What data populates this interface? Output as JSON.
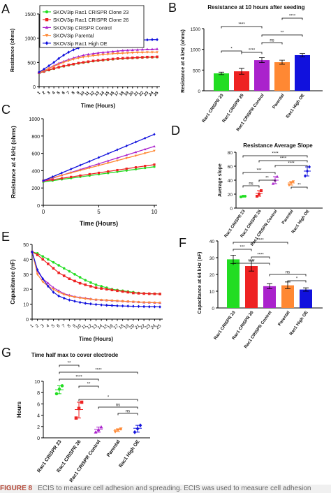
{
  "colors": {
    "g1": "#22dd22",
    "g2": "#ee2222",
    "g3": "#aa22cc",
    "g4": "#ff8833",
    "g5": "#1111dd",
    "line": "#000000"
  },
  "legend": [
    "SKOV3ip Rac1 CRISPR Clone 23",
    "SKOV3ip Rac1 CRISPR Clone 26",
    "SKOV3ip CRISPR Control",
    "SKOV3ip Parental",
    "SKOV3ip Rac1 High OE"
  ],
  "caption": {
    "label": "FIGURE 8",
    "text": "ECIS to measure cell adhesion and spreading. ECIS was used to measure cell adhesion"
  },
  "chart_data": [
    {
      "panel": "A",
      "type": "line",
      "title": "",
      "xlabel": "Time (Hours)",
      "ylabel": "Resistance (ohms)",
      "x": [
        1,
        2,
        3,
        4,
        5,
        6,
        7,
        8,
        9,
        10,
        11,
        12,
        13,
        14,
        15,
        16,
        17,
        18,
        19,
        20,
        21,
        22,
        23,
        24,
        25
      ],
      "xlim": [
        1,
        25
      ],
      "ylim": [
        0,
        1500
      ],
      "yticks": [
        0,
        500,
        1000,
        1500
      ],
      "series": [
        {
          "name": "SKOV3ip Rac1 CRISPR Clone 23",
          "values": [
            280,
            310,
            340,
            370,
            395,
            420,
            440,
            460,
            480,
            495,
            510,
            525,
            535,
            545,
            555,
            565,
            575,
            580,
            585,
            590,
            595,
            600,
            605,
            605,
            610
          ]
        },
        {
          "name": "SKOV3ip Rac1 CRISPR Clone 26",
          "values": [
            285,
            315,
            345,
            375,
            400,
            425,
            445,
            465,
            485,
            500,
            515,
            530,
            540,
            550,
            560,
            570,
            580,
            585,
            590,
            595,
            600,
            605,
            610,
            610,
            615
          ]
        },
        {
          "name": "SKOV3ip CRISPR Control",
          "values": [
            290,
            330,
            380,
            430,
            480,
            520,
            560,
            590,
            620,
            645,
            665,
            680,
            695,
            705,
            715,
            725,
            735,
            745,
            750,
            755,
            760,
            765,
            770,
            770,
            775
          ]
        },
        {
          "name": "SKOV3ip Parental",
          "values": [
            290,
            330,
            375,
            420,
            460,
            500,
            535,
            565,
            590,
            610,
            625,
            640,
            650,
            660,
            670,
            680,
            685,
            690,
            695,
            700,
            705,
            705,
            710,
            710,
            710
          ]
        },
        {
          "name": "SKOV3ip Rac1 High OE",
          "values": [
            300,
            360,
            430,
            500,
            580,
            650,
            710,
            760,
            800,
            830,
            860,
            880,
            895,
            910,
            920,
            930,
            940,
            945,
            950,
            955,
            960,
            965,
            965,
            970,
            970
          ]
        }
      ]
    },
    {
      "panel": "B",
      "type": "bar",
      "title": "Resistance at 10 hours after seeding",
      "ylabel": "Resistance at 4 kHz (ohms)",
      "categories": [
        "Rac1 CRISPR 23",
        "Rac1 CRISPR 26",
        "Rac1 CRISPR Control",
        "Parental",
        "Rac1 High OE"
      ],
      "values": [
        420,
        470,
        740,
        690,
        860
      ],
      "errors": [
        30,
        70,
        60,
        50,
        40
      ],
      "ylim": [
        0,
        1500
      ],
      "yticks": [
        0,
        500,
        1000,
        1500
      ],
      "significance": [
        {
          "from": 0,
          "to": 1,
          "label": "*"
        },
        {
          "from": 2,
          "to": 3,
          "label": "ns"
        },
        {
          "from": 2,
          "to": 4,
          "label": "**"
        },
        {
          "from": 1,
          "to": 2,
          "label": "****"
        },
        {
          "from": 0,
          "to": 2,
          "label": "****"
        },
        {
          "from": 3,
          "to": 4,
          "label": "****"
        }
      ]
    },
    {
      "panel": "C",
      "type": "line",
      "xlabel": "Time (Hours)",
      "ylabel": "Resistance at 4 kHz (ohms)",
      "xlim": [
        0,
        10
      ],
      "ylim": [
        0,
        1000
      ],
      "xticks": [
        0,
        5,
        10
      ],
      "yticks": [
        0,
        200,
        400,
        600,
        800,
        1000
      ],
      "series": [
        {
          "name": "SKOV3ip Rac1 CRISPR Clone 23",
          "points": [
            [
              0,
              270
            ],
            [
              10,
              445
            ]
          ]
        },
        {
          "name": "SKOV3ip Rac1 CRISPR Clone 26",
          "points": [
            [
              0,
              280
            ],
            [
              10,
              470
            ]
          ]
        },
        {
          "name": "SKOV3ip CRISPR Control",
          "points": [
            [
              0,
              280
            ],
            [
              10,
              680
            ]
          ]
        },
        {
          "name": "SKOV3ip Parental",
          "points": [
            [
              0,
              290
            ],
            [
              10,
              630
            ]
          ]
        },
        {
          "name": "SKOV3ip Rac1 High OE",
          "points": [
            [
              0,
              285
            ],
            [
              10,
              820
            ]
          ]
        }
      ]
    },
    {
      "panel": "D",
      "type": "scatter",
      "title": "Resistance Average Slope",
      "ylabel": "Average slope",
      "categories": [
        "Rac1 CRISPR 23",
        "Rac1 CRISPR 26",
        "Rac1 CRISPR Control",
        "Parental",
        "Rac1 High OE"
      ],
      "points": [
        [
          16,
          17,
          17
        ],
        [
          17,
          20,
          25
        ],
        [
          35,
          40,
          45
        ],
        [
          33,
          36,
          38
        ],
        [
          46,
          53,
          59
        ]
      ],
      "means": [
        17,
        21,
        40,
        36,
        53
      ],
      "ylim": [
        0,
        80
      ],
      "yticks": [
        0,
        20,
        40,
        60,
        80
      ],
      "significance": [
        {
          "from": 0,
          "to": 1,
          "label": "ns"
        },
        {
          "from": 1,
          "to": 2,
          "label": "**"
        },
        {
          "from": 3,
          "to": 4,
          "label": "**"
        },
        {
          "from": 0,
          "to": 2,
          "label": "***"
        },
        {
          "from": 2,
          "to": 4,
          "label": "****"
        },
        {
          "from": 1,
          "to": 4,
          "label": "****"
        },
        {
          "from": 0,
          "to": 4,
          "label": "****"
        }
      ]
    },
    {
      "panel": "E",
      "type": "line",
      "xlabel": "Time (Hours)",
      "ylabel": "Capacitance (nF)",
      "x": [
        1,
        2,
        3,
        4,
        5,
        6,
        7,
        8,
        9,
        10,
        11,
        12,
        13,
        14,
        15,
        16,
        17,
        18,
        19,
        20,
        21,
        22,
        23,
        24,
        25
      ],
      "xlim": [
        1,
        25
      ],
      "ylim": [
        0,
        50
      ],
      "yticks": [
        0,
        10,
        20,
        30,
        40,
        50
      ],
      "series": [
        {
          "name": "SKOV3ip Rac1 CRISPR Clone 23",
          "values": [
            45,
            44,
            42,
            40,
            38,
            36,
            34,
            32,
            30,
            28,
            26,
            24.5,
            23,
            22,
            21,
            20,
            19.5,
            19,
            18.5,
            18,
            17.5,
            17.2,
            17,
            17,
            16.8
          ]
        },
        {
          "name": "SKOV3ip Rac1 CRISPR Clone 26",
          "values": [
            45,
            43,
            40,
            37,
            34,
            31,
            29,
            27,
            25.5,
            24,
            23,
            22,
            21,
            20.5,
            20,
            19.5,
            19,
            18.5,
            18,
            17.5,
            17.3,
            17.1,
            17,
            16.9,
            16.8
          ]
        },
        {
          "name": "SKOV3ip CRISPR Control",
          "values": [
            45,
            32,
            27,
            24,
            21,
            19,
            17,
            16,
            15,
            14.5,
            14,
            13.5,
            13,
            12.8,
            12.6,
            12.4,
            12.2,
            12,
            11.8,
            11.6,
            11.4,
            11.2,
            11.1,
            11,
            10.9
          ]
        },
        {
          "name": "SKOV3ip Parental",
          "values": [
            45,
            30,
            25,
            22,
            20,
            18,
            16.5,
            15.5,
            14.8,
            14.2,
            13.7,
            13.3,
            13,
            12.8,
            12.6,
            12.4,
            12.2,
            12,
            11.8,
            11.6,
            11.4,
            11.2,
            11.1,
            11,
            10.9
          ]
        },
        {
          "name": "SKOV3ip Rac1 High OE",
          "values": [
            45,
            33,
            27,
            22,
            18,
            15.5,
            14,
            12.8,
            12,
            11.2,
            10.6,
            10.2,
            9.8,
            9.5,
            9.3,
            9.1,
            8.9,
            8.8,
            8.7,
            8.6,
            8.5,
            8.4,
            8.3,
            8.3,
            8.2
          ]
        }
      ]
    },
    {
      "panel": "F",
      "type": "bar",
      "ylabel": "Capacitance at 64 kHz (nF)",
      "categories": [
        "Rac1 CRISPR 23",
        "Rac1 CRISPR 26",
        "Rac1 CRISPR Control",
        "Parental",
        "Rac1 High OE"
      ],
      "values": [
        29,
        25,
        13,
        13.5,
        11
      ],
      "errors": [
        2.5,
        3,
        1.5,
        2,
        1
      ],
      "ylim": [
        0,
        40
      ],
      "yticks": [
        0,
        10,
        20,
        30,
        40
      ],
      "significance": [
        {
          "from": 3,
          "to": 4,
          "label": "*"
        },
        {
          "from": 2,
          "to": 4,
          "label": "ns"
        },
        {
          "from": 1,
          "to": 2,
          "label": "****"
        },
        {
          "from": 0,
          "to": 2,
          "label": "****"
        },
        {
          "from": 0,
          "to": 1,
          "label": "***"
        },
        {
          "from": 0,
          "to": 3,
          "label": "****"
        }
      ]
    },
    {
      "panel": "G",
      "type": "scatter",
      "title": "Time half max to cover electrode",
      "ylabel": "Hours",
      "categories": [
        "Rac1 CRISPR 23",
        "Rac1 CRISPR 26",
        "Rac1 CRISPR Control",
        "Parental",
        "Rac1 High OE"
      ],
      "points": [
        [
          7.8,
          8.6,
          9.2
        ],
        [
          3.5,
          5.2,
          6.3
        ],
        [
          1.0,
          1.4,
          1.9
        ],
        [
          1.1,
          1.4,
          1.6
        ],
        [
          1.0,
          1.6,
          2.2
        ]
      ],
      "means": [
        8.5,
        5.0,
        1.5,
        1.4,
        1.7
      ],
      "ylim": [
        0,
        10
      ],
      "yticks": [
        0,
        2,
        4,
        6,
        8,
        10
      ],
      "significance": [
        {
          "from": 0,
          "to": 1,
          "label": "**"
        },
        {
          "from": 0,
          "to": 2,
          "label": "****"
        },
        {
          "from": 1,
          "to": 2,
          "label": "**"
        },
        {
          "from": 0,
          "to": 4,
          "label": "****"
        },
        {
          "from": 1,
          "to": 4,
          "label": "*"
        },
        {
          "from": 2,
          "to": 4,
          "label": "ns"
        },
        {
          "from": 3,
          "to": 4,
          "label": "ns"
        }
      ]
    }
  ]
}
